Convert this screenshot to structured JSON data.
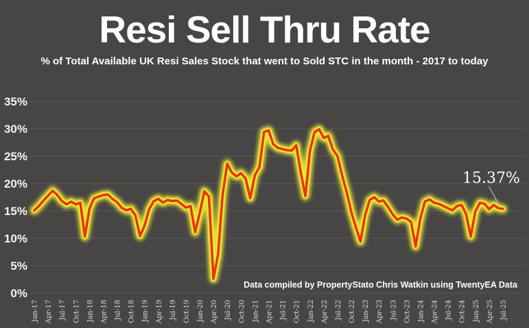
{
  "header": {
    "title": "Resi Sell Thru Rate",
    "subtitle": "% of Total Available UK Resi Sales Stock that went to Sold STC in the month - 2017 to today"
  },
  "attribution": "Data compiled by PropertyStato Chris Watkin using TwentyEA Data",
  "annotation": {
    "label": "15.37%",
    "points_to": "Jul-25"
  },
  "colors": {
    "background": "#474645",
    "gridline": "#5c5b59",
    "line_red": "#e73509",
    "line_glow_yellow": "#f2ee33",
    "title_text": "#ffffff",
    "x_axis_text": "#d8d7d4",
    "y_axis_text": "#f4f3f1"
  },
  "chart_data": {
    "type": "line",
    "title": "Resi Sell Thru Rate",
    "subtitle": "% of Total Available UK Resi Sales Stock that went to Sold STC in the month - 2017 to today",
    "x_start": "Jan-17",
    "x_end": "Jul-25",
    "frequency": "monthly",
    "points_per_tick": 3,
    "x_tick_labels": [
      "Jan-17",
      "Apr-17",
      "Jul-17",
      "Oct-17",
      "Jan-18",
      "Apr-18",
      "Jul-18",
      "Oct-18",
      "Jan-19",
      "Apr-19",
      "Jul-19",
      "Oct-19",
      "Jan-20",
      "Apr-20",
      "Jul-20",
      "Oct-20",
      "Jan-21",
      "Apr-21",
      "Jul-21",
      "Oct-21",
      "Jan-22",
      "Apr-22",
      "Jul-22",
      "Oct-22",
      "Jan-23",
      "Apr-23",
      "Jul-23",
      "Oct-23",
      "Jan-24",
      "Apr-24",
      "Jul-24",
      "Oct-24",
      "Jan-25",
      "Apr-25",
      "Jul-25"
    ],
    "y_tick_labels": [
      "0%",
      "5%",
      "10%",
      "15%",
      "20%",
      "25%",
      "30%",
      "35%"
    ],
    "ylim": [
      0,
      35
    ],
    "grid": "horizontal",
    "legend": "none",
    "last_value_label": "15.37%",
    "values": [
      15.1,
      15.9,
      16.9,
      17.8,
      18.7,
      17.9,
      16.8,
      16.2,
      16.7,
      16.2,
      16.5,
      10.3,
      15.4,
      17.3,
      17.6,
      17.9,
      18.0,
      17.2,
      16.6,
      15.6,
      15.1,
      15.4,
      14.2,
      10.4,
      12.3,
      15.3,
      16.8,
      17.2,
      16.5,
      17.0,
      16.8,
      16.9,
      16.3,
      15.6,
      15.9,
      11.1,
      14.6,
      18.6,
      17.6,
      2.6,
      7.0,
      18.0,
      23.6,
      22.0,
      21.3,
      21.9,
      20.9,
      17.3,
      21.5,
      23.0,
      29.4,
      29.7,
      27.2,
      26.5,
      26.3,
      26.1,
      26.0,
      27.0,
      22.0,
      17.7,
      26.0,
      29.4,
      29.9,
      28.3,
      28.7,
      26.2,
      25.0,
      21.5,
      18.4,
      14.8,
      12.0,
      9.4,
      14.2,
      17.0,
      17.5,
      16.7,
      16.9,
      15.7,
      14.4,
      13.4,
      13.8,
      13.6,
      13.0,
      8.5,
      13.5,
      16.7,
      17.1,
      16.5,
      16.3,
      15.9,
      15.5,
      15.1,
      15.9,
      16.1,
      14.4,
      10.3,
      14.9,
      16.5,
      16.3,
      15.3,
      16.1,
      15.5,
      15.37
    ]
  }
}
